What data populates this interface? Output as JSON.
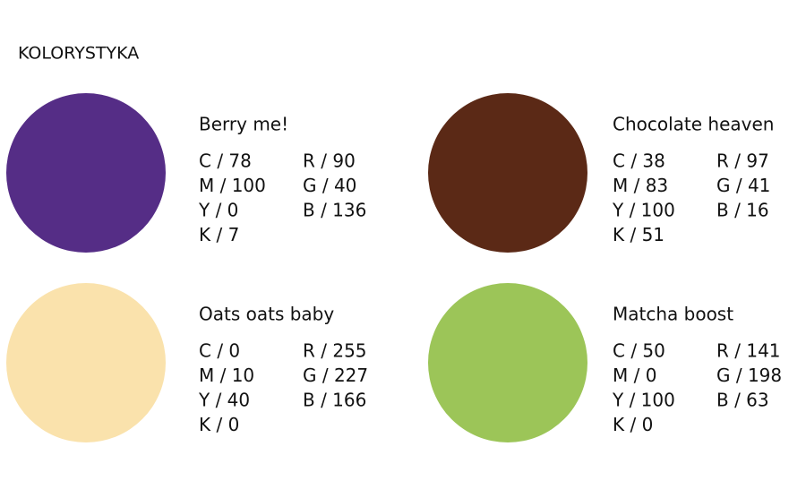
{
  "header": {
    "title": "KOLORYSTYKA"
  },
  "colors": [
    {
      "name": "Berry me!",
      "cmyk": [
        "C / 78",
        "M / 100",
        "Y / 0",
        "K / 7"
      ],
      "rgb": [
        "R / 90",
        "G / 40",
        "B / 136"
      ],
      "swatch": "#552d86"
    },
    {
      "name": "Chocolate heaven",
      "cmyk": [
        "C / 38",
        "M / 83",
        "Y / 100",
        "K / 51"
      ],
      "rgb": [
        "R / 97",
        "G / 41",
        "B / 16"
      ],
      "swatch": "#5b2916"
    },
    {
      "name": "Oats oats baby",
      "cmyk": [
        "C / 0",
        "M / 10",
        "Y / 40",
        "K / 0"
      ],
      "rgb": [
        "R / 255",
        "G / 227",
        "B / 166"
      ],
      "swatch": "#fae2ac"
    },
    {
      "name": "Matcha boost",
      "cmyk": [
        "C / 50",
        "M / 0",
        "Y / 100",
        "K / 0"
      ],
      "rgb": [
        "R / 141",
        "G / 198",
        "B / 63"
      ],
      "swatch": "#9cc558"
    }
  ]
}
